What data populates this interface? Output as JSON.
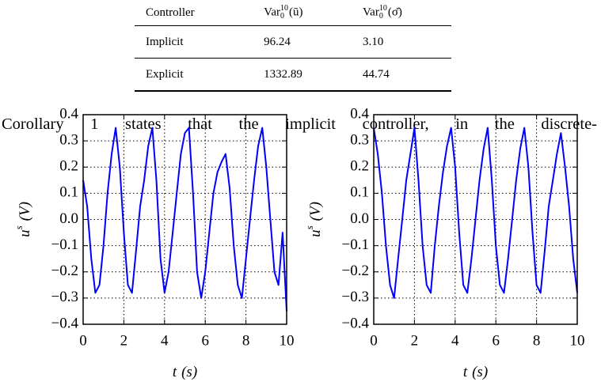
{
  "table": {
    "columns": [
      "Controller",
      {
        "base": "Var",
        "sup": "10",
        "sub": "0",
        "arg": "(ū)"
      },
      {
        "base": "Var",
        "sup": "10",
        "sub": "0",
        "arg": "(σ̄)"
      }
    ],
    "rows": [
      [
        "Implicit",
        "96.24",
        "3.10"
      ],
      [
        "Explicit",
        "1332.89",
        "44.74"
      ]
    ]
  },
  "text": "Corollary 1 states that the implicit controller, in the discrete-",
  "chart_data": [
    {
      "type": "line",
      "color": "#0000ff",
      "grid": true,
      "xlabel": {
        "main": "t",
        "rest": "(s)"
      },
      "ylabel": {
        "main": "u",
        "sup": "s",
        "rest": "(V)"
      },
      "xlim": [
        0,
        10
      ],
      "xticks": [
        0,
        2,
        4,
        6,
        8,
        10
      ],
      "ylim": [
        -0.4,
        0.4
      ],
      "yticks": [
        {
          "value": -0.4,
          "label": "−0.4"
        },
        {
          "value": -0.3,
          "label": "−0.3"
        },
        {
          "value": -0.2,
          "label": "−0.2"
        },
        {
          "value": -0.1,
          "label": "−0.1"
        },
        {
          "value": 0,
          "label": "0.0"
        },
        0.1,
        0.2,
        0.3,
        0.4
      ],
      "x": [
        0,
        0.2,
        0.4,
        0.6,
        0.8,
        1,
        1.2,
        1.4,
        1.6,
        1.8,
        2,
        2.2,
        2.4,
        2.6,
        2.8,
        3,
        3.2,
        3.4,
        3.6,
        3.8,
        4,
        4.2,
        4.4,
        4.6,
        4.8,
        5,
        5.2,
        5.4,
        5.6,
        5.8,
        6,
        6.2,
        6.4,
        6.6,
        6.8,
        7,
        7.2,
        7.4,
        7.6,
        7.8,
        8,
        8.2,
        8.4,
        8.6,
        8.8,
        9,
        9.2,
        9.4,
        9.6,
        9.8,
        10
      ],
      "values": [
        0.15,
        0.05,
        -0.15,
        -0.28,
        -0.25,
        -0.1,
        0.1,
        0.25,
        0.35,
        0.2,
        -0.05,
        -0.25,
        -0.28,
        -0.12,
        0.05,
        0.15,
        0.28,
        0.35,
        0.15,
        -0.15,
        -0.28,
        -0.2,
        -0.05,
        0.1,
        0.25,
        0.33,
        0.35,
        0.1,
        -0.2,
        -0.3,
        -0.2,
        -0.05,
        0.1,
        0.18,
        0.22,
        0.25,
        0.12,
        -0.1,
        -0.25,
        -0.3,
        -0.15,
        0,
        0.15,
        0.28,
        0.35,
        0.2,
        0,
        -0.2,
        -0.25,
        -0.05,
        -0.35
      ]
    },
    {
      "type": "line",
      "color": "#0000ff",
      "grid": true,
      "xlabel": {
        "main": "t",
        "rest": "(s)"
      },
      "ylabel": {
        "main": "u",
        "sup": "s",
        "rest": "(V)"
      },
      "xlim": [
        0,
        10
      ],
      "xticks": [
        0,
        2,
        4,
        6,
        8,
        10
      ],
      "ylim": [
        -0.4,
        0.4
      ],
      "yticks": [
        {
          "value": -0.4,
          "label": "−0.4"
        },
        {
          "value": -0.3,
          "label": "−0.3"
        },
        {
          "value": -0.2,
          "label": "−0.2"
        },
        {
          "value": -0.1,
          "label": "−0.1"
        },
        {
          "value": 0,
          "label": "0.0"
        },
        0.1,
        0.2,
        0.3,
        0.4
      ],
      "x": [
        0,
        0.2,
        0.4,
        0.6,
        0.8,
        1,
        1.2,
        1.4,
        1.6,
        1.8,
        2,
        2.2,
        2.4,
        2.6,
        2.8,
        3,
        3.2,
        3.4,
        3.6,
        3.8,
        4,
        4.2,
        4.4,
        4.6,
        4.8,
        5,
        5.2,
        5.4,
        5.6,
        5.8,
        6,
        6.2,
        6.4,
        6.6,
        6.8,
        7,
        7.2,
        7.4,
        7.6,
        7.8,
        8,
        8.2,
        8.4,
        8.6,
        8.8,
        9,
        9.2,
        9.4,
        9.6,
        9.8,
        10
      ],
      "values": [
        0.35,
        0.25,
        0.1,
        -0.1,
        -0.25,
        -0.3,
        -0.15,
        0,
        0.15,
        0.25,
        0.35,
        0.15,
        -0.1,
        -0.25,
        -0.28,
        -0.1,
        0.05,
        0.18,
        0.28,
        0.35,
        0.2,
        -0.05,
        -0.25,
        -0.28,
        -0.15,
        0,
        0.15,
        0.27,
        0.35,
        0.15,
        -0.1,
        -0.25,
        -0.28,
        -0.15,
        0,
        0.15,
        0.27,
        0.35,
        0.2,
        -0.05,
        -0.25,
        -0.28,
        -0.12,
        0.05,
        0.15,
        0.25,
        0.33,
        0.2,
        0.05,
        -0.15,
        -0.28
      ]
    }
  ]
}
